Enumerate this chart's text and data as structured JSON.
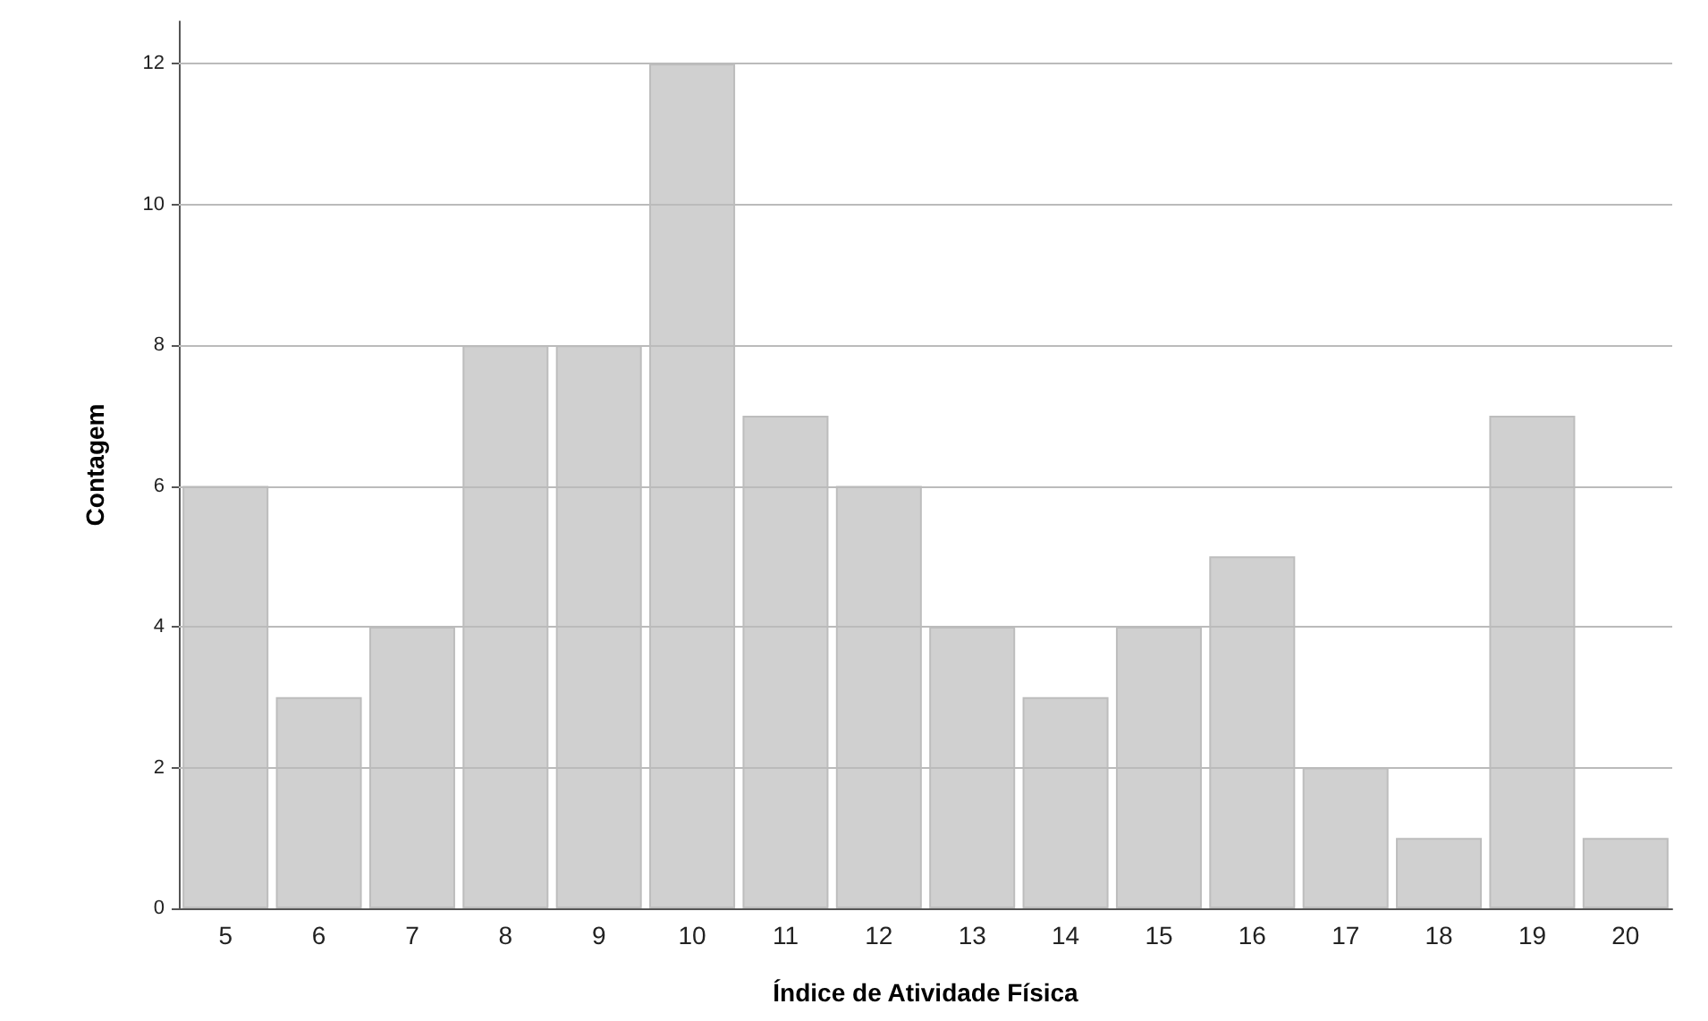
{
  "chart_data": {
    "type": "bar",
    "xlabel": "Índice de Atividade Física",
    "ylabel": "Contagem",
    "categories": [
      "5",
      "6",
      "7",
      "8",
      "9",
      "10",
      "11",
      "12",
      "13",
      "14",
      "15",
      "16",
      "17",
      "18",
      "19",
      "20"
    ],
    "values": [
      6,
      3,
      4,
      8,
      8,
      12,
      7,
      6,
      4,
      3,
      4,
      5,
      2,
      1,
      7,
      1
    ],
    "color": "#d0d0d0",
    "ylim": [
      0,
      12.6
    ],
    "yticks": [
      0,
      2,
      4,
      6,
      8,
      10,
      12
    ],
    "grid": "y"
  }
}
